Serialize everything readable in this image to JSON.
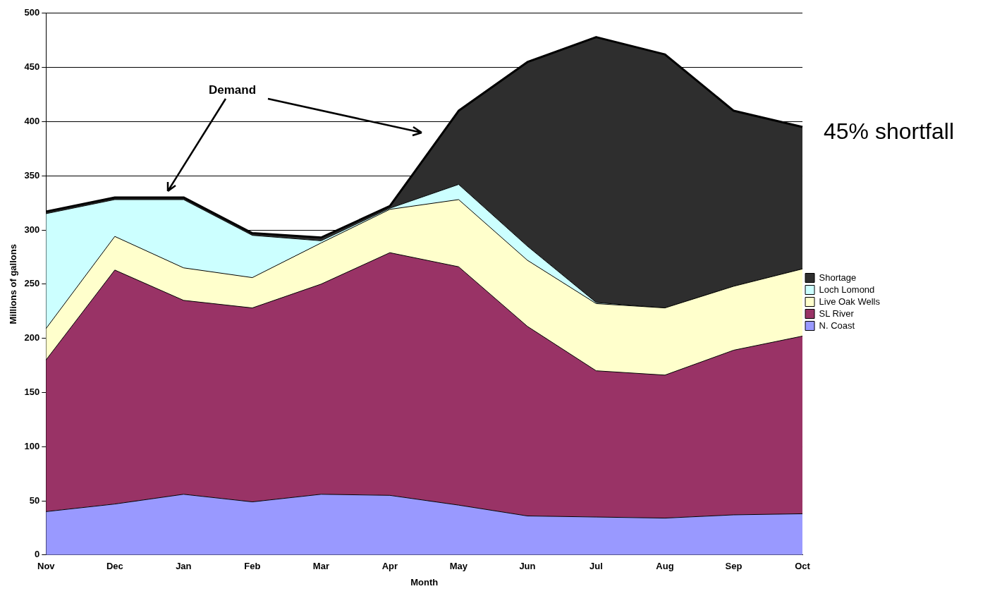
{
  "chart_data": {
    "type": "area",
    "xlabel": "Month",
    "ylabel": "Millions of gallons",
    "categories": [
      "Nov",
      "Dec",
      "Jan",
      "Feb",
      "Mar",
      "Apr",
      "May",
      "Jun",
      "Jul",
      "Aug",
      "Sep",
      "Oct"
    ],
    "stacked": true,
    "series": [
      {
        "name": "N. Coast",
        "color": "#9999ff",
        "values": [
          40,
          47,
          56,
          49,
          56,
          55,
          46,
          36,
          35,
          34,
          37,
          38
        ]
      },
      {
        "name": "SL River",
        "color": "#993366",
        "values": [
          140,
          216,
          179,
          179,
          194,
          224,
          220,
          175,
          135,
          132,
          152,
          164
        ]
      },
      {
        "name": "Live Oak Wells",
        "color": "#ffffcc",
        "values": [
          29,
          31,
          30,
          28,
          38,
          40,
          62,
          61,
          62,
          62,
          59,
          62
        ]
      },
      {
        "name": "Loch Lomond",
        "color": "#ccffff",
        "values": [
          106,
          34,
          63,
          39,
          2,
          1,
          14,
          13,
          1,
          0,
          0,
          0
        ]
      },
      {
        "name": "Shortage",
        "color": "#2e2e2e",
        "values": [
          2,
          2,
          2,
          2,
          3,
          2,
          68,
          170,
          245,
          234,
          162,
          131
        ]
      }
    ],
    "ylim": [
      0,
      500
    ],
    "yticks": [
      0,
      50,
      100,
      150,
      200,
      250,
      300,
      350,
      400,
      450,
      500
    ],
    "grid": "y",
    "legend": "right",
    "annotations": [
      "Demand",
      "45% shortfall"
    ]
  }
}
